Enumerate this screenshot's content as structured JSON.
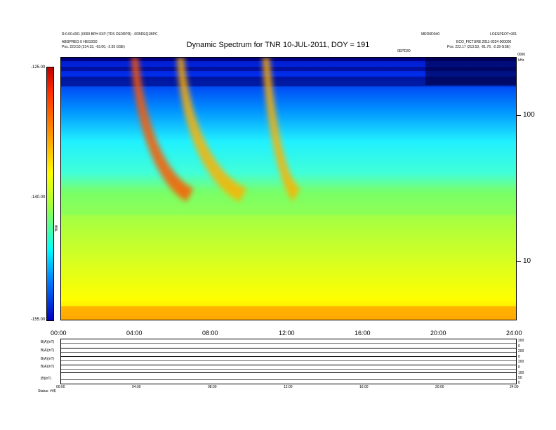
{
  "chart_data": {
    "type": "heatmap",
    "title": "Dynamic Spectrum for TNR 10-JUL-2011, DOY = 191",
    "x_tick_labels": [
      "00:00",
      "04:00",
      "08:00",
      "12:00",
      "16:00",
      "20:00",
      "24:00"
    ],
    "y_tick_labels": [
      "100",
      "10"
    ],
    "y_scale": "log",
    "colorbar": {
      "ticks": [
        "-125.00",
        "-140.00",
        "-155.00"
      ],
      "range": [
        -155,
        -125
      ],
      "colors": [
        "#0000c0",
        "#0080ff",
        "#00ffff",
        "#a0ff40",
        "#ffff00",
        "#ffa000",
        "#ff3000",
        "#c00000"
      ]
    },
    "features": [
      {
        "start_hours": 4.1,
        "end_hours": 7.0
      },
      {
        "start_hours": 6.5,
        "end_hours": 9.8
      },
      {
        "start_hours": 11.0,
        "end_hours": 12.6
      }
    ]
  },
  "header": {
    "left_line1": "R:0.00+001 (0000 BPH 0XP (TDS DE0DPR) - 0FBDEQ1BPC",
    "left_line2": "ABGPREG 0 HEG3G0",
    "left_line3": "Pos.    223.53 (214.33, -63.00, -2.55 GSE)",
    "right_line1": "LOESPEOT=301",
    "right_line2": "MRD0D040",
    "right_line3": "ECO_FICTURE 2011-0224 000000",
    "right_line4": "Pos.    222.17 (213.53, -61.76, -2.39 GSE)",
    "label_center": "0EPD30",
    "label_right": "kHz",
    "side_left": "0000",
    "y_axis_label": "TNR"
  },
  "bottom_panel": {
    "row_labels": [
      "B(A)(nT)",
      "B(A)(nT)",
      "B(A)(nT)",
      "B(A)(nT)",
      "|B|(nT)"
    ],
    "right_ticks": [
      "200",
      "0",
      "200",
      "0",
      "200",
      "0",
      "100",
      "50",
      "0"
    ],
    "x_ticks": [
      "00:00",
      "04:00",
      "08:00",
      "12:00",
      "16:00",
      "20:00",
      "24:00"
    ],
    "status": "Status:  ##$",
    "status_left": "Status"
  }
}
